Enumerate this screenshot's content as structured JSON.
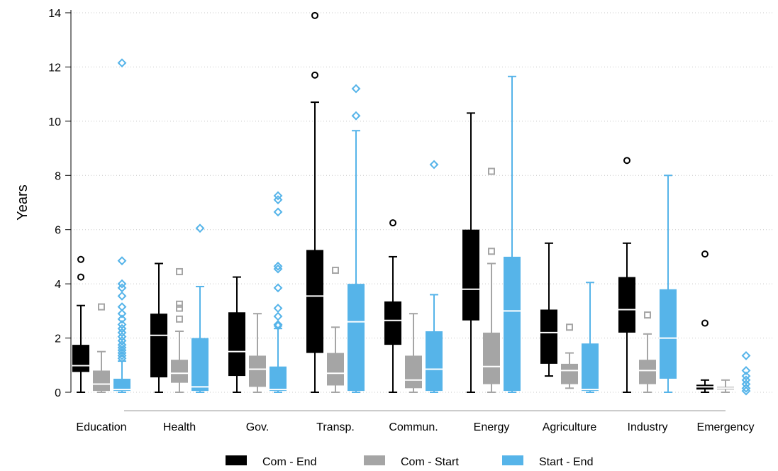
{
  "chart_data": {
    "type": "box",
    "title": "",
    "xlabel": "",
    "ylabel": "Years",
    "ylim": [
      0,
      14
    ],
    "yticks": [
      0,
      2,
      4,
      6,
      8,
      10,
      12,
      14
    ],
    "grid": "horizontal-dotted",
    "legend_position": "bottom",
    "categories": [
      "Education",
      "Health",
      "Gov.",
      "Transp.",
      "Commun.",
      "Energy",
      "Agriculture",
      "Industry",
      "Emergency"
    ],
    "series": [
      {
        "name": "Com - End",
        "color": "#000000",
        "median_color": "#ffffff",
        "outlier_marker": "circle",
        "boxes": [
          {
            "min": 0.0,
            "q1": 0.75,
            "median": 0.98,
            "q3": 1.75,
            "max": 3.2,
            "outliers": [
              4.25,
              4.9
            ]
          },
          {
            "min": 0.0,
            "q1": 0.55,
            "median": 2.1,
            "q3": 2.9,
            "max": 4.75,
            "outliers": []
          },
          {
            "min": 0.0,
            "q1": 0.6,
            "median": 1.5,
            "q3": 2.95,
            "max": 4.25,
            "outliers": []
          },
          {
            "min": 0.0,
            "q1": 1.45,
            "median": 3.55,
            "q3": 5.25,
            "max": 10.7,
            "outliers": [
              11.7,
              13.9
            ]
          },
          {
            "min": 0.0,
            "q1": 1.75,
            "median": 2.65,
            "q3": 3.35,
            "max": 5.0,
            "outliers": [
              6.25
            ]
          },
          {
            "min": 0.0,
            "q1": 2.65,
            "median": 3.8,
            "q3": 6.0,
            "max": 10.3,
            "outliers": []
          },
          {
            "min": 0.6,
            "q1": 1.05,
            "median": 2.2,
            "q3": 3.05,
            "max": 5.5,
            "outliers": []
          },
          {
            "min": 0.0,
            "q1": 2.2,
            "median": 3.05,
            "q3": 4.25,
            "max": 5.5,
            "outliers": [
              8.55
            ]
          },
          {
            "min": 0.0,
            "q1": 0.1,
            "median": 0.2,
            "q3": 0.28,
            "max": 0.45,
            "outliers": [
              2.55,
              5.1
            ]
          }
        ]
      },
      {
        "name": "Com - Start",
        "color": "#a5a5a5",
        "median_color": "#ffffff",
        "outlier_marker": "square",
        "boxes": [
          {
            "min": 0.0,
            "q1": 0.05,
            "median": 0.3,
            "q3": 0.8,
            "max": 1.5,
            "outliers": [
              3.15
            ]
          },
          {
            "min": 0.0,
            "q1": 0.35,
            "median": 0.7,
            "q3": 1.2,
            "max": 2.25,
            "outliers": [
              2.7,
              3.1,
              3.25,
              4.45
            ]
          },
          {
            "min": 0.0,
            "q1": 0.2,
            "median": 0.85,
            "q3": 1.35,
            "max": 2.9,
            "outliers": []
          },
          {
            "min": 0.0,
            "q1": 0.25,
            "median": 0.7,
            "q3": 1.45,
            "max": 2.4,
            "outliers": [
              4.5
            ]
          },
          {
            "min": 0.0,
            "q1": 0.15,
            "median": 0.45,
            "q3": 1.35,
            "max": 2.9,
            "outliers": []
          },
          {
            "min": 0.0,
            "q1": 0.3,
            "median": 0.95,
            "q3": 2.2,
            "max": 4.75,
            "outliers": [
              5.2,
              8.15
            ]
          },
          {
            "min": 0.15,
            "q1": 0.3,
            "median": 0.8,
            "q3": 1.05,
            "max": 1.45,
            "outliers": [
              2.4
            ]
          },
          {
            "min": 0.0,
            "q1": 0.3,
            "median": 0.8,
            "q3": 1.2,
            "max": 2.15,
            "outliers": [
              2.85
            ]
          },
          {
            "min": 0.0,
            "q1": 0.1,
            "median": 0.15,
            "q3": 0.2,
            "max": 0.45,
            "outliers": []
          }
        ]
      },
      {
        "name": "Start - End",
        "color": "#56b4e9",
        "median_color": "#ffffff",
        "outlier_marker": "diamond",
        "boxes": [
          {
            "min": 0.0,
            "q1": 0.05,
            "median": 0.1,
            "q3": 0.5,
            "max": 1.15,
            "outliers": [
              1.25,
              1.35,
              1.45,
              1.55,
              1.65,
              1.75,
              1.9,
              2.05,
              2.2,
              2.35,
              2.5,
              2.7,
              2.9,
              3.15,
              3.55,
              3.85,
              4.0,
              4.85,
              12.15
            ]
          },
          {
            "min": 0.0,
            "q1": 0.05,
            "median": 0.2,
            "q3": 2.0,
            "max": 3.9,
            "outliers": [
              6.05
            ]
          },
          {
            "min": 0.0,
            "q1": 0.05,
            "median": 0.1,
            "q3": 0.95,
            "max": 2.35,
            "outliers": [
              2.45,
              2.5,
              2.8,
              3.1,
              3.85,
              4.55,
              4.65,
              6.65,
              7.1,
              7.25
            ]
          },
          {
            "min": 0.0,
            "q1": 0.05,
            "median": 2.6,
            "q3": 4.0,
            "max": 9.65,
            "outliers": [
              10.2,
              11.2
            ]
          },
          {
            "min": 0.0,
            "q1": 0.05,
            "median": 0.85,
            "q3": 2.25,
            "max": 3.6,
            "outliers": [
              8.4
            ]
          },
          {
            "min": 0.0,
            "q1": 0.05,
            "median": 3.0,
            "q3": 5.0,
            "max": 11.65,
            "outliers": []
          },
          {
            "min": 0.0,
            "q1": 0.05,
            "median": 0.1,
            "q3": 1.8,
            "max": 4.05,
            "outliers": []
          },
          {
            "min": 0.0,
            "q1": 0.5,
            "median": 2.0,
            "q3": 3.8,
            "max": 8.0,
            "outliers": []
          },
          {
            "min": 0.0,
            "q1": 0.0,
            "median": 0.0,
            "q3": 0.0,
            "max": 0.0,
            "outliers": [
              0.05,
              0.15,
              0.3,
              0.45,
              0.6,
              0.8,
              1.35
            ]
          }
        ]
      }
    ]
  }
}
